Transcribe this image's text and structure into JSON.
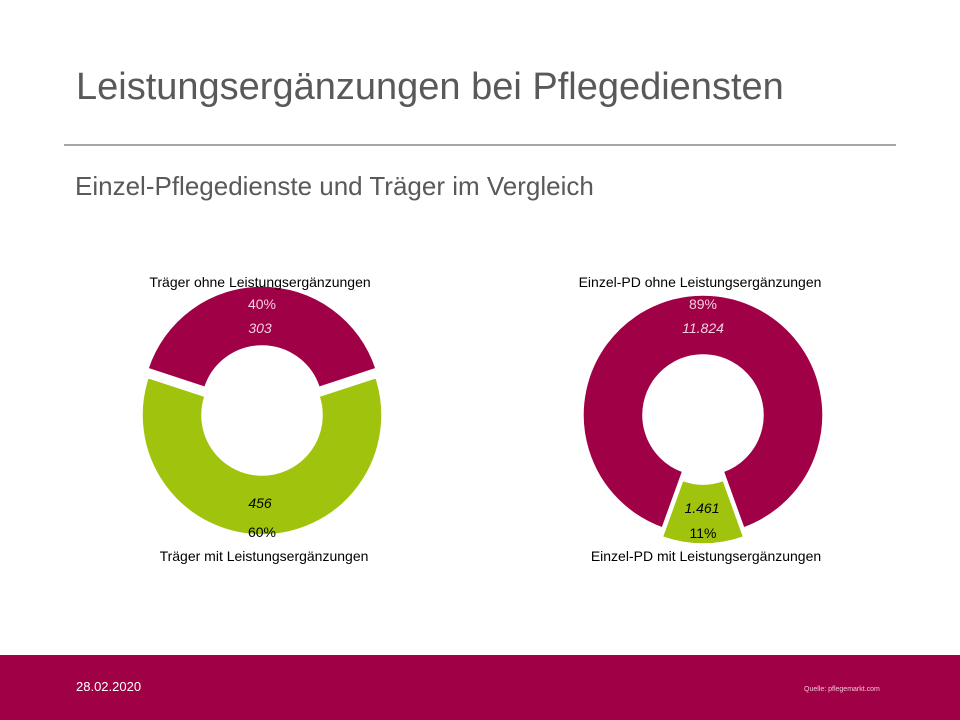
{
  "slide": {
    "title": "Leistungsergänzungen bei Pflegediensten",
    "subtitle": "Einzel-Pflegedienste und Träger im Vergleich"
  },
  "colors": {
    "magenta": "#a00046",
    "green": "#a0c40e"
  },
  "chart_data": [
    {
      "type": "pie",
      "variant": "donut",
      "slices": [
        {
          "label": "Träger ohne Leistungsergänzungen",
          "value": 303,
          "value_label": "303",
          "percent": 40,
          "percent_label": "40%",
          "color": "#a00046",
          "exploded": true
        },
        {
          "label": "Träger mit Leistungsergänzungen",
          "value": 456,
          "value_label": "456",
          "percent": 60,
          "percent_label": "60%",
          "color": "#a0c40e",
          "exploded": false
        }
      ]
    },
    {
      "type": "pie",
      "variant": "donut",
      "slices": [
        {
          "label": "Einzel-PD ohne Leistungsergänzungen",
          "value": 11824,
          "value_label": "11.824",
          "percent": 89,
          "percent_label": "89%",
          "color": "#a00046",
          "exploded": false
        },
        {
          "label": "Einzel-PD mit Leistungsergänzungen",
          "value": 1461,
          "value_label": "1.461",
          "percent": 11,
          "percent_label": "11%",
          "color": "#a0c40e",
          "exploded": true
        }
      ]
    }
  ],
  "footer": {
    "date": "28.02.2020",
    "source": "Quelle: pflegemarkt.com"
  }
}
